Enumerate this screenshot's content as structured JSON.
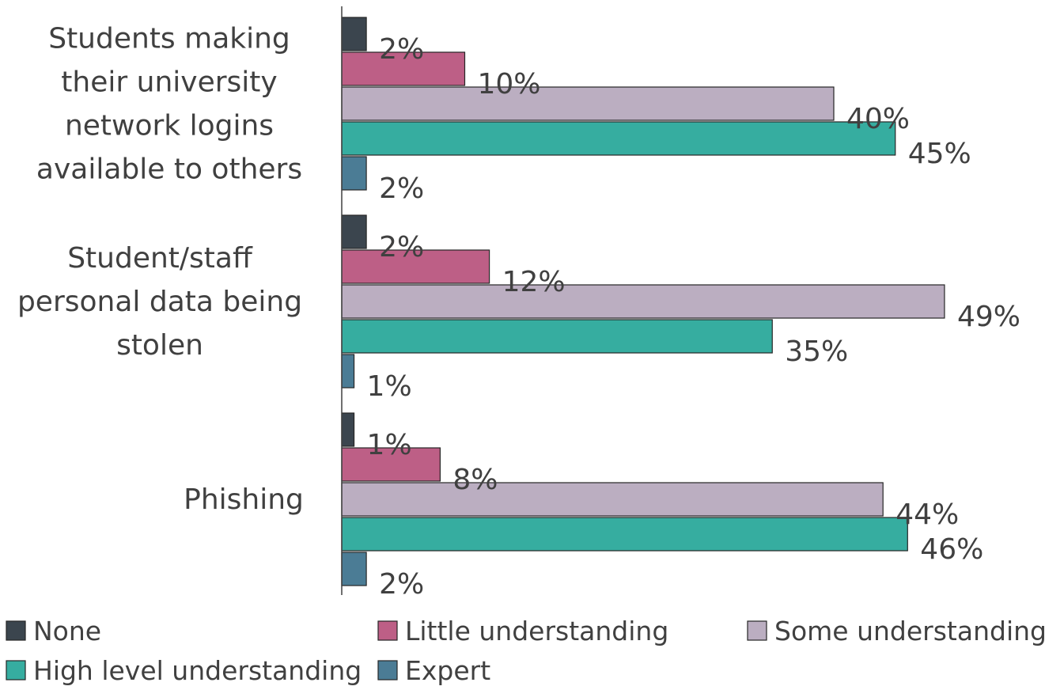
{
  "chart_data": {
    "type": "bar",
    "orientation": "horizontal",
    "categories": [
      "Students making their university network logins available to others",
      "Student/staff personal data being stolen",
      "Phishing"
    ],
    "category_lines": [
      [
        "Students making",
        "their university",
        "network logins",
        "available to others"
      ],
      [
        "Student/staff",
        "personal data being",
        "stolen"
      ],
      [
        "Phishing"
      ]
    ],
    "series": [
      {
        "name": "None",
        "color": "#3B454E",
        "values": [
          2,
          2,
          1
        ]
      },
      {
        "name": "Little understanding",
        "color": "#BD5F86",
        "values": [
          10,
          12,
          8
        ]
      },
      {
        "name": "Some understanding",
        "color": "#BBAEC1",
        "values": [
          40,
          49,
          44
        ]
      },
      {
        "name": "High level understanding",
        "color": "#36ADA0",
        "values": [
          45,
          35,
          46
        ]
      },
      {
        "name": "Expert",
        "color": "#4B7C95",
        "values": [
          2,
          1,
          2
        ]
      }
    ],
    "value_suffix": "%",
    "xlim": [
      0,
      50
    ],
    "grid": false,
    "legend_position": "bottom"
  }
}
